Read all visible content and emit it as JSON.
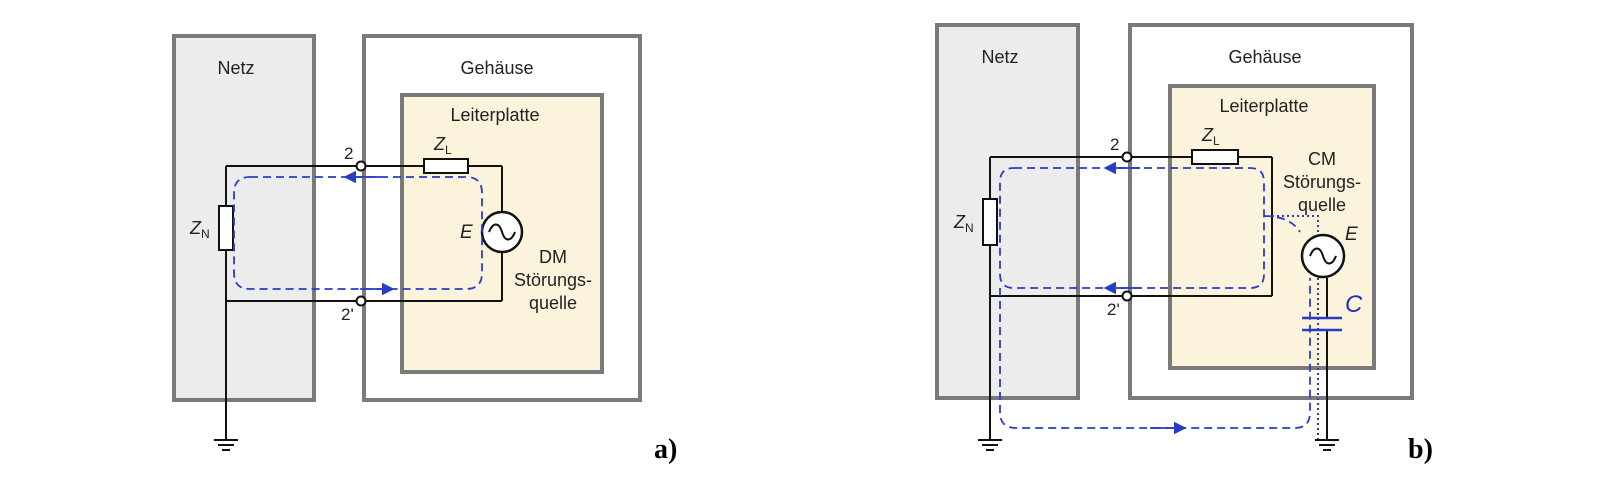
{
  "panel_a": {
    "netz_label": "Netz",
    "gehaeuse_label": "Gehäuse",
    "leiterplatte_label": "Leiterplatte",
    "node_top": "2",
    "node_bottom": "2'",
    "zl_main": "Z",
    "zl_sub": "L",
    "zn_main": "Z",
    "zn_sub": "N",
    "source_label": "E",
    "source_desc_1": "DM",
    "source_desc_2": "Störungs-",
    "source_desc_3": "quelle",
    "panel_tag": "a)"
  },
  "panel_b": {
    "netz_label": "Netz",
    "gehaeuse_label": "Gehäuse",
    "leiterplatte_label": "Leiterplatte",
    "node_top": "2",
    "node_bottom": "2'",
    "zl_main": "Z",
    "zl_sub": "L",
    "zn_main": "Z",
    "zn_sub": "N",
    "source_label": "E",
    "source_desc_1": "CM",
    "source_desc_2": "Störungs-",
    "source_desc_3": "quelle",
    "capacitor_label": "C",
    "panel_tag": "b)"
  },
  "colors": {
    "grey_box_fill": "#ececec",
    "grey_box_stroke": "#7a7a7a",
    "pcb_fill": "#fcf3dc",
    "wire": "#111111",
    "current_path": "#2a3bc8"
  }
}
